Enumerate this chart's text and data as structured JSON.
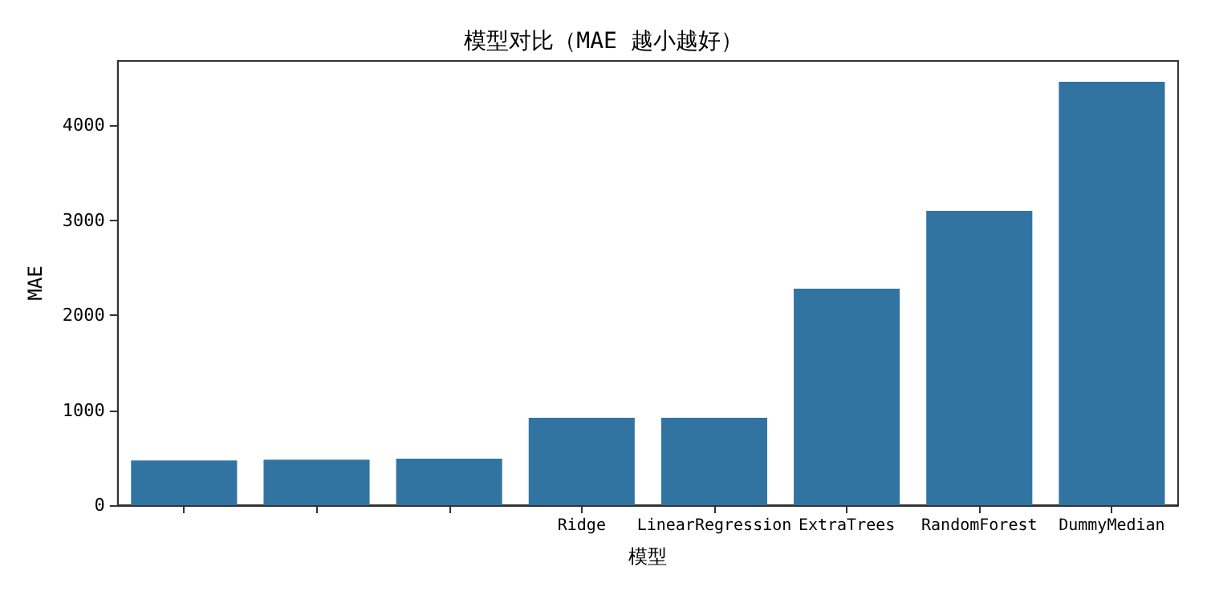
{
  "chart_data": {
    "type": "bar",
    "title": "模型对比（MAE 越小越好）",
    "xlabel": "模型",
    "ylabel": "MAE",
    "categories": [
      null,
      null,
      null,
      "Ridge",
      "LinearRegression",
      "ExtraTrees",
      "RandomForest",
      "DummyMedian"
    ],
    "values": [
      470,
      480,
      490,
      920,
      920,
      2280,
      3100,
      4460
    ],
    "color": "#3274a1",
    "ylim": [
      0,
      4680
    ],
    "yticks": [
      0,
      1000,
      2000,
      3000,
      4000
    ],
    "grid": false
  }
}
